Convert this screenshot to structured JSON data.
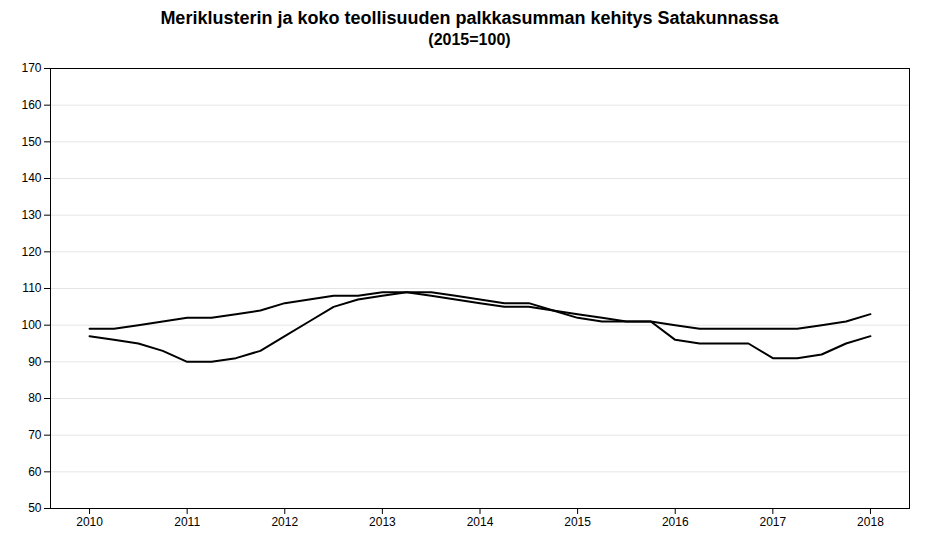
{
  "chart_data": {
    "type": "line",
    "title": "Meriklusterin ja koko teollisuuden palkkasumman kehitys Satakunnassa",
    "subtitle": "(2015=100)",
    "x": [
      2010.0,
      2010.25,
      2010.5,
      2010.75,
      2011.0,
      2011.25,
      2011.5,
      2011.75,
      2012.0,
      2012.25,
      2012.5,
      2012.75,
      2013.0,
      2013.25,
      2013.5,
      2013.75,
      2014.0,
      2014.25,
      2014.5,
      2014.75,
      2015.0,
      2015.25,
      2015.5,
      2015.75,
      2016.0,
      2016.25,
      2016.5,
      2016.75,
      2017.0,
      2017.25,
      2017.5,
      2017.75,
      2018.0
    ],
    "series": [
      {
        "values": [
          99,
          99,
          100,
          101,
          102,
          102,
          103,
          104,
          106,
          107,
          108,
          108,
          109,
          109,
          108,
          107,
          106,
          105,
          105,
          104,
          103,
          102,
          101,
          101,
          100,
          99,
          99,
          99,
          99,
          99,
          100,
          101,
          103
        ]
      },
      {
        "values": [
          97,
          96,
          95,
          93,
          90,
          90,
          91,
          93,
          97,
          101,
          105,
          107,
          108,
          109,
          109,
          108,
          107,
          106,
          106,
          104,
          102,
          101,
          101,
          101,
          96,
          95,
          95,
          95,
          91,
          91,
          92,
          95,
          97
        ]
      }
    ],
    "xlim": [
      2009.6,
      2018.4
    ],
    "xticks": [
      2010,
      2011,
      2012,
      2013,
      2014,
      2015,
      2016,
      2017,
      2018
    ],
    "ylim": [
      50,
      170
    ],
    "yticks": [
      50,
      60,
      70,
      80,
      90,
      100,
      110,
      120,
      130,
      140,
      150,
      160,
      170
    ],
    "grid": true
  }
}
